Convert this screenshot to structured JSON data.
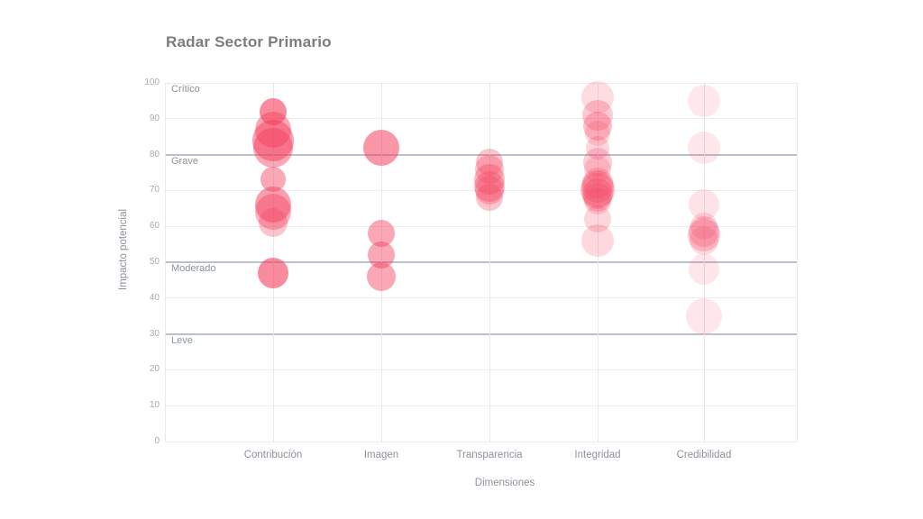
{
  "title": "Radar Sector Primario",
  "colors": {
    "bubble": "#f43f5e",
    "grid": "#ececec",
    "threshold_line": "#b9c2cc",
    "title_text": "#7c7c7c",
    "axis_text": "#8d929a",
    "tick_text": "#a6abb2",
    "background": "#ffffff"
  },
  "chart_data": {
    "type": "scatter",
    "subtype": "bubble-strip",
    "title": "Radar Sector Primario",
    "xlabel": "Dimensiones",
    "ylabel": "Impacto potencial",
    "ylim": [
      0,
      100
    ],
    "yticks": [
      0,
      10,
      20,
      30,
      40,
      50,
      60,
      70,
      80,
      90,
      100
    ],
    "grid": true,
    "legend": "none",
    "categories": [
      "Contribución",
      "Imagen",
      "Transparencia",
      "Integridad",
      "Credibilidad"
    ],
    "thresholds": [
      {
        "label": "Crítico",
        "value": 100,
        "strong_line": false
      },
      {
        "label": "Grave",
        "value": 80,
        "strong_line": true
      },
      {
        "label": "Moderado",
        "value": 50,
        "strong_line": true
      },
      {
        "label": "Leve",
        "value": 30,
        "strong_line": true
      }
    ],
    "series": [
      {
        "category": "Contribución",
        "points": [
          {
            "y": 92,
            "r": 15,
            "opacity": 0.6
          },
          {
            "y": 87,
            "r": 20,
            "opacity": 0.45
          },
          {
            "y": 84,
            "r": 23,
            "opacity": 0.5
          },
          {
            "y": 82,
            "r": 22,
            "opacity": 0.45
          },
          {
            "y": 73,
            "r": 14,
            "opacity": 0.45
          },
          {
            "y": 66,
            "r": 20,
            "opacity": 0.5
          },
          {
            "y": 64,
            "r": 20,
            "opacity": 0.4
          },
          {
            "y": 61,
            "r": 16,
            "opacity": 0.3
          },
          {
            "y": 47,
            "r": 17,
            "opacity": 0.6
          }
        ]
      },
      {
        "category": "Imagen",
        "points": [
          {
            "y": 82,
            "r": 20,
            "opacity": 0.55
          },
          {
            "y": 58,
            "r": 15,
            "opacity": 0.45
          },
          {
            "y": 52,
            "r": 15,
            "opacity": 0.45
          },
          {
            "y": 46,
            "r": 16,
            "opacity": 0.45
          }
        ]
      },
      {
        "category": "Transparencia",
        "points": [
          {
            "y": 78,
            "r": 15,
            "opacity": 0.3
          },
          {
            "y": 76,
            "r": 16,
            "opacity": 0.3
          },
          {
            "y": 73,
            "r": 17,
            "opacity": 0.35
          },
          {
            "y": 71,
            "r": 17,
            "opacity": 0.35
          },
          {
            "y": 70,
            "r": 16,
            "opacity": 0.3
          },
          {
            "y": 68,
            "r": 15,
            "opacity": 0.3
          }
        ]
      },
      {
        "category": "Integridad",
        "points": [
          {
            "y": 96,
            "r": 18,
            "opacity": 0.18
          },
          {
            "y": 91,
            "r": 17,
            "opacity": 0.28
          },
          {
            "y": 88,
            "r": 16,
            "opacity": 0.3
          },
          {
            "y": 86,
            "r": 14,
            "opacity": 0.2
          },
          {
            "y": 82,
            "r": 13,
            "opacity": 0.22
          },
          {
            "y": 78,
            "r": 16,
            "opacity": 0.25
          },
          {
            "y": 76,
            "r": 15,
            "opacity": 0.2
          },
          {
            "y": 72,
            "r": 17,
            "opacity": 0.25
          },
          {
            "y": 71,
            "r": 18,
            "opacity": 0.3
          },
          {
            "y": 70,
            "r": 19,
            "opacity": 0.3
          },
          {
            "y": 69,
            "r": 17,
            "opacity": 0.3
          },
          {
            "y": 68,
            "r": 16,
            "opacity": 0.25
          },
          {
            "y": 67,
            "r": 15,
            "opacity": 0.2
          },
          {
            "y": 62,
            "r": 15,
            "opacity": 0.22
          },
          {
            "y": 56,
            "r": 18,
            "opacity": 0.2
          }
        ]
      },
      {
        "category": "Credibilidad",
        "points": [
          {
            "y": 95,
            "r": 18,
            "opacity": 0.12
          },
          {
            "y": 82,
            "r": 18,
            "opacity": 0.13
          },
          {
            "y": 66,
            "r": 17,
            "opacity": 0.15
          },
          {
            "y": 60,
            "r": 15,
            "opacity": 0.18
          },
          {
            "y": 58.5,
            "r": 17,
            "opacity": 0.25
          },
          {
            "y": 57.5,
            "r": 18,
            "opacity": 0.25
          },
          {
            "y": 56,
            "r": 16,
            "opacity": 0.2
          },
          {
            "y": 48,
            "r": 17,
            "opacity": 0.13
          },
          {
            "y": 35,
            "r": 20,
            "opacity": 0.13
          }
        ]
      }
    ]
  }
}
